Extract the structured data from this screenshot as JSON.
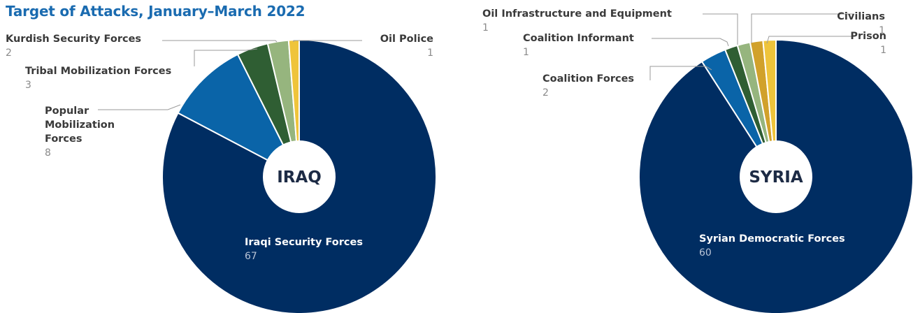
{
  "title": "Target of Attacks, January–March 2022",
  "chart_data": [
    {
      "type": "pie",
      "center_label": "IRAQ",
      "slices": [
        {
          "label": "Iraqi Security Forces",
          "value": 67,
          "color": "#002d62"
        },
        {
          "label": "Popular Mobilization Forces",
          "value": 8,
          "color": "#0a64a8"
        },
        {
          "label": "Tribal Mobilization Forces",
          "value": 3,
          "color": "#2f5e33"
        },
        {
          "label": "Kurdish Security Forces",
          "value": 2,
          "color": "#96b57e"
        },
        {
          "label": "Oil Police",
          "value": 1,
          "color": "#efc43b"
        }
      ]
    },
    {
      "type": "pie",
      "center_label": "SYRIA",
      "slices": [
        {
          "label": "Syrian Democratic Forces",
          "value": 60,
          "color": "#002d62"
        },
        {
          "label": "Coalition Forces",
          "value": 2,
          "color": "#0a64a8"
        },
        {
          "label": "Coalition Informant",
          "value": 1,
          "color": "#2f5e33"
        },
        {
          "label": "Oil Infrastructure and Equipment",
          "value": 1,
          "color": "#96b57e"
        },
        {
          "label": "Civilians",
          "value": 1,
          "color": "#d1a12b"
        },
        {
          "label": "Prison",
          "value": 1,
          "color": "#efc43b"
        }
      ]
    }
  ]
}
